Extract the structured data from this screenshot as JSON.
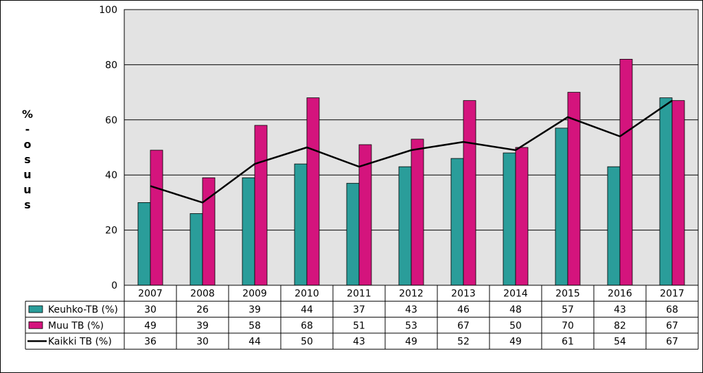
{
  "chart_data": {
    "type": "bar",
    "categories": [
      "2007",
      "2008",
      "2009",
      "2010",
      "2011",
      "2012",
      "2013",
      "2014",
      "2015",
      "2016",
      "2017"
    ],
    "series": [
      {
        "name": "Keuhko-TB (%)",
        "kind": "bar",
        "color": "#2a9d9a",
        "values": [
          30,
          26,
          39,
          44,
          37,
          43,
          46,
          48,
          57,
          43,
          68
        ]
      },
      {
        "name": "Muu TB (%)",
        "kind": "bar",
        "color": "#d4147d",
        "values": [
          49,
          39,
          58,
          68,
          51,
          53,
          67,
          50,
          70,
          82,
          67
        ]
      },
      {
        "name": "Kaikki TB (%)",
        "kind": "line",
        "color": "#000000",
        "values": [
          36,
          30,
          44,
          50,
          43,
          49,
          52,
          49,
          61,
          54,
          67
        ]
      }
    ],
    "ylabel_chars": [
      "%",
      "-",
      "o",
      "s",
      "u",
      "u",
      "s"
    ],
    "ylim": [
      0,
      100
    ],
    "yticks": [
      0,
      20,
      40,
      60,
      80,
      100
    ],
    "grid": true,
    "plot_background": "#e3e3e3",
    "legend": "data-table"
  }
}
